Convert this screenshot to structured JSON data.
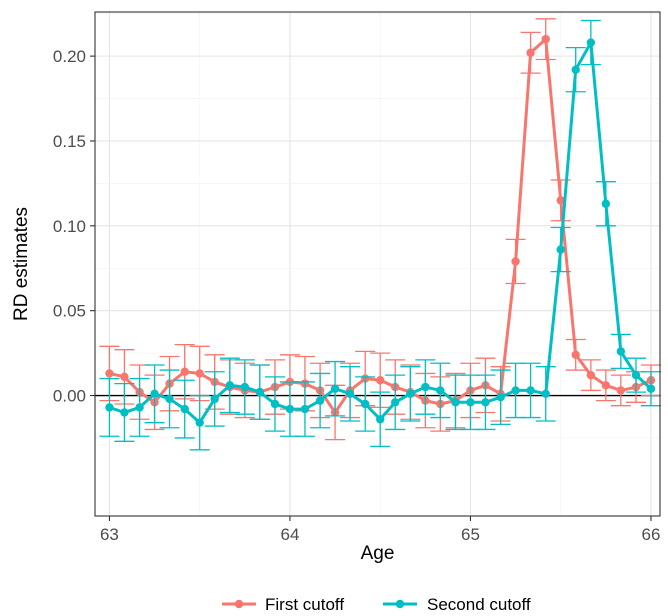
{
  "chart_data": {
    "type": "line",
    "title": "",
    "xlabel": "Age",
    "ylabel": "RD estimates",
    "xlim": [
      62.92,
      66.05
    ],
    "ylim": [
      -0.071,
      0.226
    ],
    "x_ticks": [
      63,
      64,
      65,
      66
    ],
    "x_tick_labels": [
      "63",
      "64",
      "65",
      "66"
    ],
    "y_ticks": [
      0.0,
      0.05,
      0.1,
      0.15,
      0.2
    ],
    "y_tick_labels": [
      "0.00",
      "0.05",
      "0.10",
      "0.15",
      "0.20"
    ],
    "grid": true,
    "zero_line": 0,
    "legend_position": "bottom",
    "series": [
      {
        "name": "First cutoff",
        "color": "#F8766D",
        "x": [
          63.0,
          63.083,
          63.167,
          63.25,
          63.333,
          63.417,
          63.5,
          63.583,
          63.667,
          63.75,
          63.833,
          63.917,
          64.0,
          64.083,
          64.167,
          64.25,
          64.333,
          64.417,
          64.5,
          64.583,
          64.667,
          64.75,
          64.833,
          64.917,
          65.0,
          65.083,
          65.167,
          65.25,
          65.333,
          65.417,
          65.5,
          65.583,
          65.667,
          65.75,
          65.833,
          65.917,
          66.0
        ],
        "y": [
          0.013,
          0.011,
          0.002,
          -0.004,
          0.007,
          0.014,
          0.013,
          0.008,
          0.005,
          0.003,
          0.002,
          0.005,
          0.008,
          0.007,
          0.003,
          -0.01,
          0.003,
          0.01,
          0.009,
          0.005,
          0.002,
          -0.003,
          -0.005,
          -0.003,
          0.003,
          0.006,
          0.001,
          0.079,
          0.202,
          0.21,
          0.115,
          0.024,
          0.012,
          0.006,
          0.003,
          0.005,
          0.009
        ],
        "lower": [
          -0.003,
          -0.005,
          -0.014,
          -0.02,
          -0.009,
          -0.002,
          -0.003,
          -0.008,
          -0.011,
          -0.013,
          -0.014,
          -0.011,
          -0.008,
          -0.009,
          -0.013,
          -0.026,
          -0.013,
          -0.006,
          -0.007,
          -0.011,
          -0.014,
          -0.019,
          -0.021,
          -0.019,
          -0.013,
          -0.01,
          -0.015,
          0.066,
          0.19,
          0.198,
          0.103,
          0.015,
          0.003,
          -0.003,
          -0.006,
          -0.004,
          0.0
        ],
        "upper": [
          0.029,
          0.027,
          0.018,
          0.012,
          0.023,
          0.03,
          0.029,
          0.024,
          0.021,
          0.019,
          0.018,
          0.021,
          0.024,
          0.023,
          0.019,
          0.006,
          0.019,
          0.026,
          0.025,
          0.021,
          0.018,
          0.013,
          0.011,
          0.013,
          0.019,
          0.022,
          0.017,
          0.092,
          0.214,
          0.222,
          0.127,
          0.033,
          0.021,
          0.015,
          0.012,
          0.014,
          0.018
        ]
      },
      {
        "name": "Second cutoff",
        "color": "#00BFC4",
        "x": [
          63.0,
          63.083,
          63.167,
          63.25,
          63.333,
          63.417,
          63.5,
          63.583,
          63.667,
          63.75,
          63.833,
          63.917,
          64.0,
          64.083,
          64.167,
          64.25,
          64.333,
          64.417,
          64.5,
          64.583,
          64.667,
          64.75,
          64.833,
          64.917,
          65.0,
          65.083,
          65.167,
          65.25,
          65.333,
          65.417,
          65.5,
          65.583,
          65.667,
          65.75,
          65.833,
          65.917,
          66.0
        ],
        "y": [
          -0.007,
          -0.01,
          -0.007,
          0.001,
          -0.002,
          -0.008,
          -0.016,
          -0.002,
          0.006,
          0.005,
          0.002,
          -0.005,
          -0.008,
          -0.008,
          -0.003,
          0.004,
          0.001,
          -0.005,
          -0.014,
          -0.004,
          0.001,
          0.005,
          0.003,
          -0.004,
          -0.004,
          -0.004,
          -0.001,
          0.003,
          0.003,
          0.001,
          0.086,
          0.192,
          0.208,
          0.113,
          0.026,
          0.012,
          0.004
        ],
        "lower": [
          -0.024,
          -0.027,
          -0.024,
          -0.016,
          -0.019,
          -0.025,
          -0.032,
          -0.018,
          -0.01,
          -0.011,
          -0.014,
          -0.021,
          -0.024,
          -0.024,
          -0.019,
          -0.012,
          -0.015,
          -0.021,
          -0.03,
          -0.02,
          -0.015,
          -0.011,
          -0.013,
          -0.02,
          -0.02,
          -0.02,
          -0.017,
          -0.013,
          -0.013,
          -0.015,
          0.073,
          0.179,
          0.195,
          0.1,
          0.016,
          0.002,
          -0.006
        ],
        "upper": [
          0.01,
          0.007,
          0.01,
          0.018,
          0.015,
          0.009,
          0.0,
          0.014,
          0.022,
          0.021,
          0.018,
          0.011,
          0.008,
          0.008,
          0.013,
          0.02,
          0.017,
          0.011,
          0.002,
          0.012,
          0.017,
          0.021,
          0.019,
          0.012,
          0.012,
          0.012,
          0.015,
          0.019,
          0.019,
          0.017,
          0.099,
          0.205,
          0.221,
          0.126,
          0.036,
          0.022,
          0.014
        ]
      }
    ]
  }
}
